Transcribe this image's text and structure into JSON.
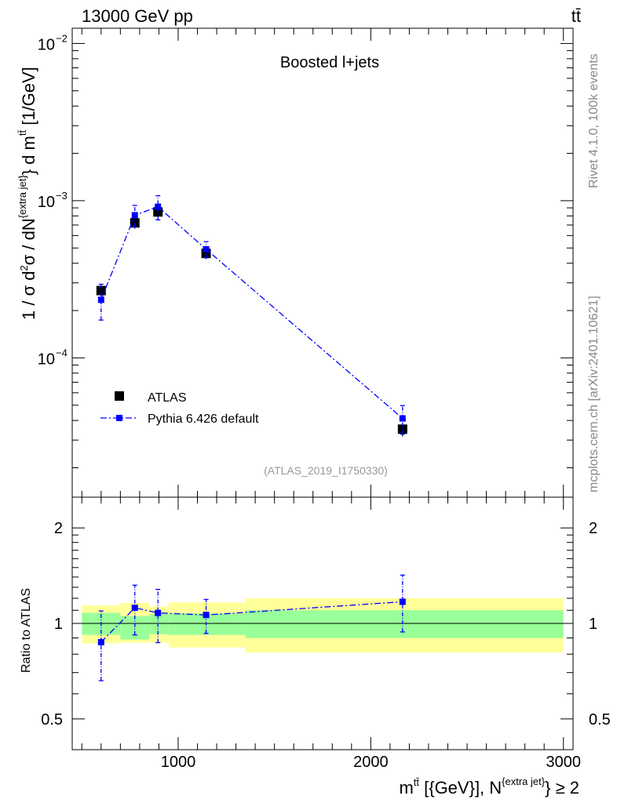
{
  "header": {
    "left": "13000 GeV pp",
    "right": "tt̄"
  },
  "side": {
    "rivet": "Rivet 4.1.0,  100k events",
    "mcplots": "mcplots.cern.ch [arXiv:2401.10621]"
  },
  "colors": {
    "data": "#000000",
    "mc": "#0000ff",
    "band_inner": "#99ff99",
    "band_outer": "#ffff99",
    "ref_line": "#000000",
    "analysis_label": "#999999"
  },
  "chart_data": [
    {
      "type": "scatter",
      "title": "Boosted l+jets",
      "analysis_id": "(ATLAS_2019_I1750330)",
      "ylabel_main": "1 / σ d²σ / dN{extra jet} d mtt̄ [1/GeV]",
      "xlabel": "mtt̄ [{GeV}], N{extra jet} ≥ 2",
      "xlim": [
        450,
        3050
      ],
      "ylim": [
        1.3e-05,
        0.0125
      ],
      "yscale": "log",
      "xticks": [
        1000,
        2000,
        3000
      ],
      "xticklabels": [
        "1000",
        "2000",
        "3000"
      ],
      "yticks_major": [
        0.0001,
        0.001,
        0.01
      ],
      "yticklabels": [
        "10",
        "10",
        "10"
      ],
      "yticksup": [
        "−4",
        "−3",
        "−2"
      ],
      "legend": {
        "position": "middle-left",
        "entries": [
          "ATLAS",
          "Pythia 6.426 default"
        ]
      },
      "series": [
        {
          "name": "ATLAS",
          "x": [
            600,
            775,
            895,
            1145,
            2165
          ],
          "xlo": [
            500,
            700,
            850,
            950,
            1350
          ],
          "xhi": [
            700,
            850,
            950,
            1350,
            3000
          ],
          "y": [
            0.000268,
            0.000722,
            0.000848,
            0.000462,
            3.52e-05
          ],
          "yerr": [
            2.15e-05,
            5.8e-05,
            6.25e-05,
            3.65e-05,
            3.6e-06
          ]
        },
        {
          "name": "Pythia 6.426 default",
          "x": [
            600,
            775,
            895,
            1145,
            2165
          ],
          "y": [
            0.000234,
            0.000808,
            0.000915,
            0.000491,
            4.12e-05
          ],
          "yerr": [
            6e-05,
            0.000125,
            0.00016,
            5.75e-05,
            8.5e-06
          ]
        }
      ]
    },
    {
      "type": "scatter",
      "ylabel": "Ratio to ATLAS",
      "xlim": [
        450,
        3050
      ],
      "ylim": [
        0.4,
        2.5
      ],
      "yscale": "log",
      "yticks": [
        0.5,
        1,
        2
      ],
      "yticklabels": [
        "0.5",
        "1",
        "2"
      ],
      "band": {
        "xlo": [
          500,
          700,
          850,
          950,
          1350
        ],
        "xhi": [
          700,
          850,
          950,
          1350,
          3000
        ],
        "inner_lo": [
          0.92,
          0.89,
          0.925,
          0.92,
          0.9
        ],
        "inner_hi": [
          1.08,
          1.055,
          1.07,
          1.075,
          1.1
        ],
        "outer_lo": [
          0.865,
          0.87,
          0.87,
          0.84,
          0.81
        ],
        "outer_hi": [
          1.14,
          1.16,
          1.13,
          1.165,
          1.2
        ]
      },
      "series": [
        {
          "name": "Pythia 6.426 default / ATLAS",
          "x": [
            600,
            775,
            895,
            1145,
            2165
          ],
          "y": [
            0.873,
            1.12,
            1.079,
            1.063,
            1.17
          ],
          "ylo": [
            0.66,
            0.92,
            0.87,
            0.93,
            0.94
          ],
          "yhi": [
            1.095,
            1.32,
            1.28,
            1.19,
            1.42
          ]
        }
      ]
    }
  ]
}
